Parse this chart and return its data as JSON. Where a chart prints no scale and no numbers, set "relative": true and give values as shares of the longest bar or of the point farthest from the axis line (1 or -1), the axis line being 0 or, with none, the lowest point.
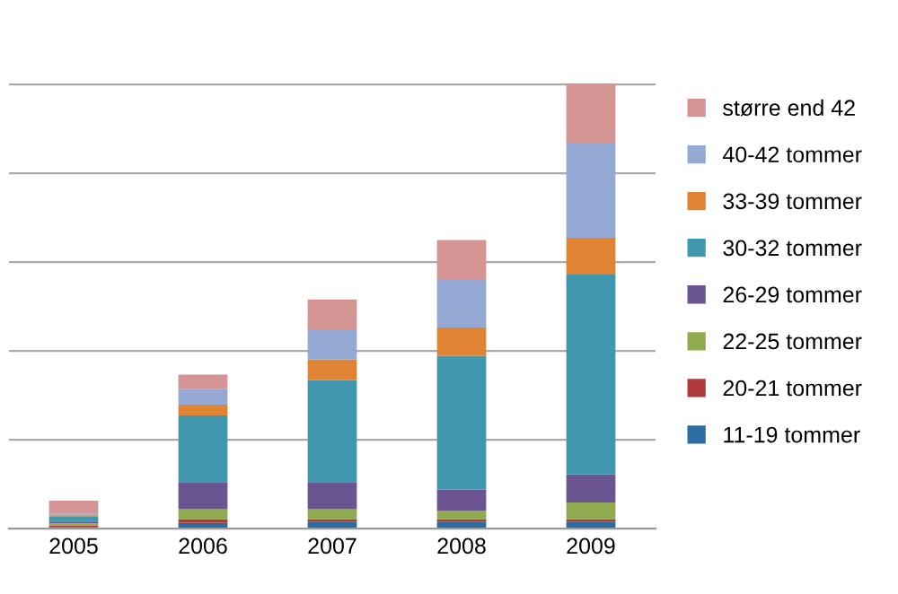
{
  "chart_data": {
    "type": "bar",
    "stacked": true,
    "relative": true,
    "grid": "y",
    "legend": "right",
    "categories": [
      "2005",
      "2006",
      "2007",
      "2008",
      "2009"
    ],
    "series": [
      {
        "name": "11-19 tommer",
        "color": "#2e6ca4",
        "values": [
          0.004,
          0.013,
          0.015,
          0.016,
          0.015
        ]
      },
      {
        "name": "20-21 tommer",
        "color": "#b03a3a",
        "values": [
          0.003,
          0.008,
          0.006,
          0.005,
          0.006
        ]
      },
      {
        "name": "22-25 tommer",
        "color": "#8faa4f",
        "values": [
          0.005,
          0.023,
          0.023,
          0.02,
          0.038
        ]
      },
      {
        "name": "26-29 tommer",
        "color": "#6b5591",
        "values": [
          0.004,
          0.061,
          0.061,
          0.047,
          0.063
        ]
      },
      {
        "name": "30-32 tommer",
        "color": "#4197ad",
        "values": [
          0.012,
          0.15,
          0.229,
          0.301,
          0.45
        ]
      },
      {
        "name": "33-39 tommer",
        "color": "#e08434",
        "values": [
          0.002,
          0.024,
          0.047,
          0.064,
          0.083
        ]
      },
      {
        "name": "40-42 tommer",
        "color": "#94aad4",
        "values": [
          0.004,
          0.036,
          0.068,
          0.107,
          0.214
        ]
      },
      {
        "name": "større end 42",
        "color": "#d59595",
        "values": [
          0.029,
          0.032,
          0.067,
          0.09,
          0.131
        ]
      }
    ]
  }
}
